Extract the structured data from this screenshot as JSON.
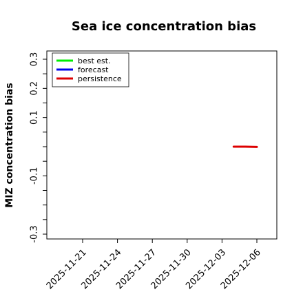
{
  "chart_data": {
    "type": "line",
    "title": "Sea ice concentration bias",
    "ylabel": "MIZ concentration bias",
    "xlabel": "",
    "ylim": [
      -0.32,
      0.33
    ],
    "xlim": [
      "2025-11-18",
      "2025-12-08"
    ],
    "yticks": [
      {
        "value": 0.3,
        "label": "0.3"
      },
      {
        "value": 0.25,
        "label": ""
      },
      {
        "value": 0.2,
        "label": "0.2"
      },
      {
        "value": 0.15,
        "label": ""
      },
      {
        "value": 0.1,
        "label": "0.1"
      },
      {
        "value": 0.05,
        "label": ""
      },
      {
        "value": 0.0,
        "label": ""
      },
      {
        "value": -0.05,
        "label": ""
      },
      {
        "value": -0.1,
        "label": "-0.1"
      },
      {
        "value": -0.15,
        "label": ""
      },
      {
        "value": -0.2,
        "label": ""
      },
      {
        "value": -0.25,
        "label": ""
      },
      {
        "value": -0.3,
        "label": "-0.3"
      }
    ],
    "xticks": [
      {
        "date": "2025-11-21",
        "label": "2025-11-21",
        "color": "#000000"
      },
      {
        "date": "2025-11-24",
        "label": "2025-11-24",
        "color": "#000000"
      },
      {
        "date": "2025-11-27",
        "label": "2025-11-27",
        "color": "#228B22"
      },
      {
        "date": "2025-11-30",
        "label": "2025-11-30",
        "color": "#000000"
      },
      {
        "date": "2025-12-03",
        "label": "2025-12-03",
        "color": "#000000"
      },
      {
        "date": "2025-12-06",
        "label": "2025-12-06",
        "color": "#000000"
      }
    ],
    "legend_position": "top-left",
    "series": [
      {
        "name": "best est.",
        "color": "#00ee00",
        "points": []
      },
      {
        "name": "forecast",
        "color": "#0000ee",
        "points": []
      },
      {
        "name": "persistence",
        "color": "#dd0000",
        "points": [
          {
            "x": "2025-12-04",
            "y": 0.0
          },
          {
            "x": "2025-12-05",
            "y": 0.0
          },
          {
            "x": "2025-12-06",
            "y": -0.001
          }
        ]
      }
    ]
  }
}
